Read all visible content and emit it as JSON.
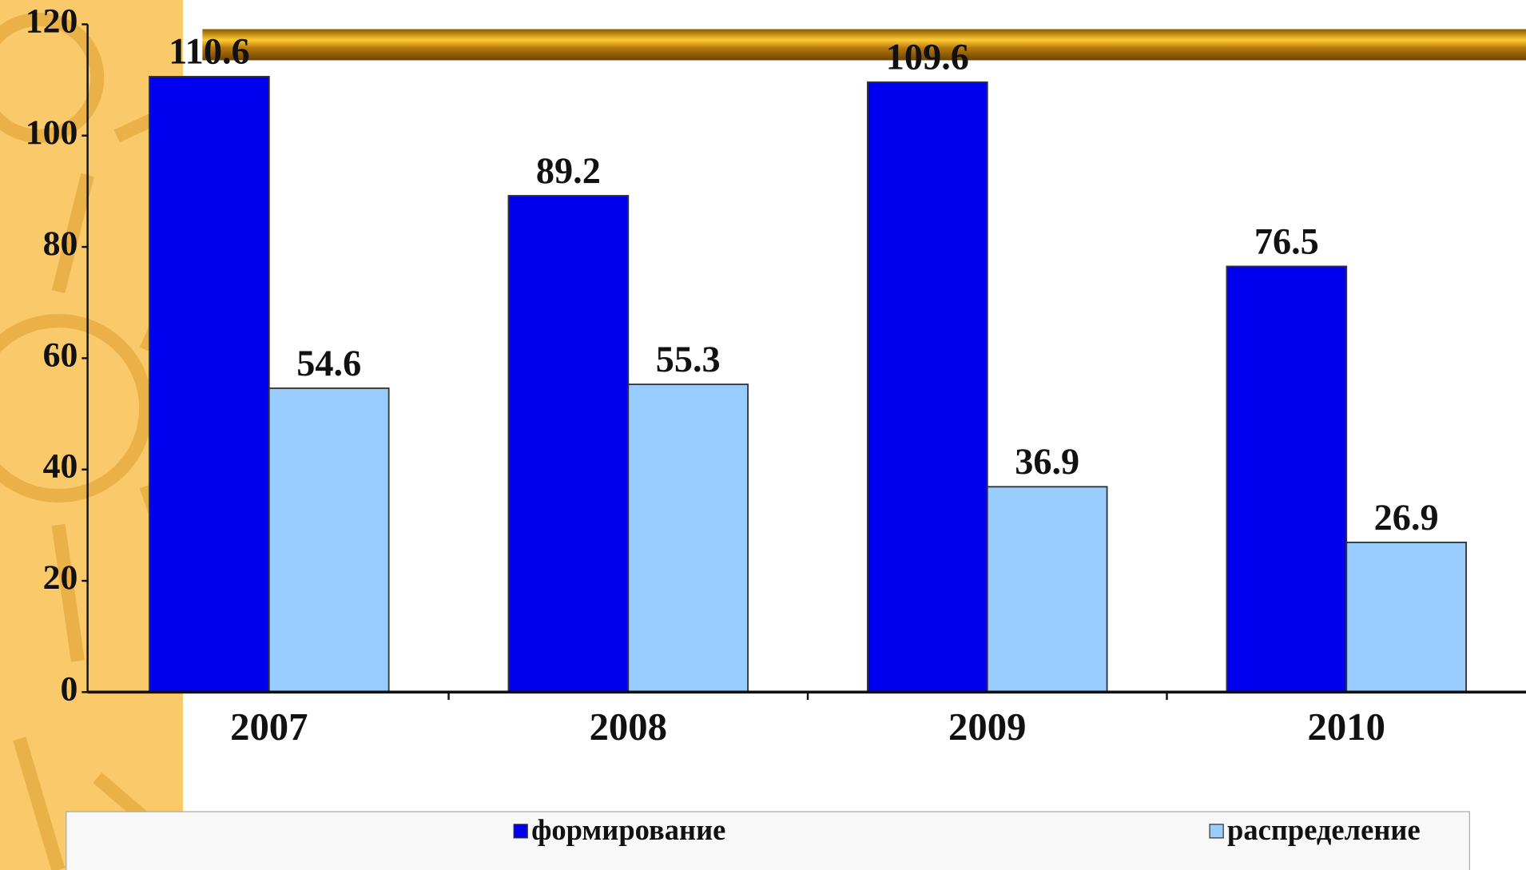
{
  "chart_data": {
    "type": "bar",
    "categories": [
      "2007",
      "2008",
      "2009",
      "2010"
    ],
    "series": [
      {
        "name": "формирование",
        "color": "#0000ee",
        "values": [
          110.6,
          89.2,
          109.6,
          76.5
        ]
      },
      {
        "name": "распределение",
        "color": "#99ccff",
        "values": [
          54.6,
          55.3,
          36.9,
          26.9
        ]
      }
    ],
    "ylim": [
      0,
      120
    ],
    "yticks": [
      0,
      20,
      40,
      60,
      80,
      100,
      120
    ],
    "legend": "bottom"
  }
}
